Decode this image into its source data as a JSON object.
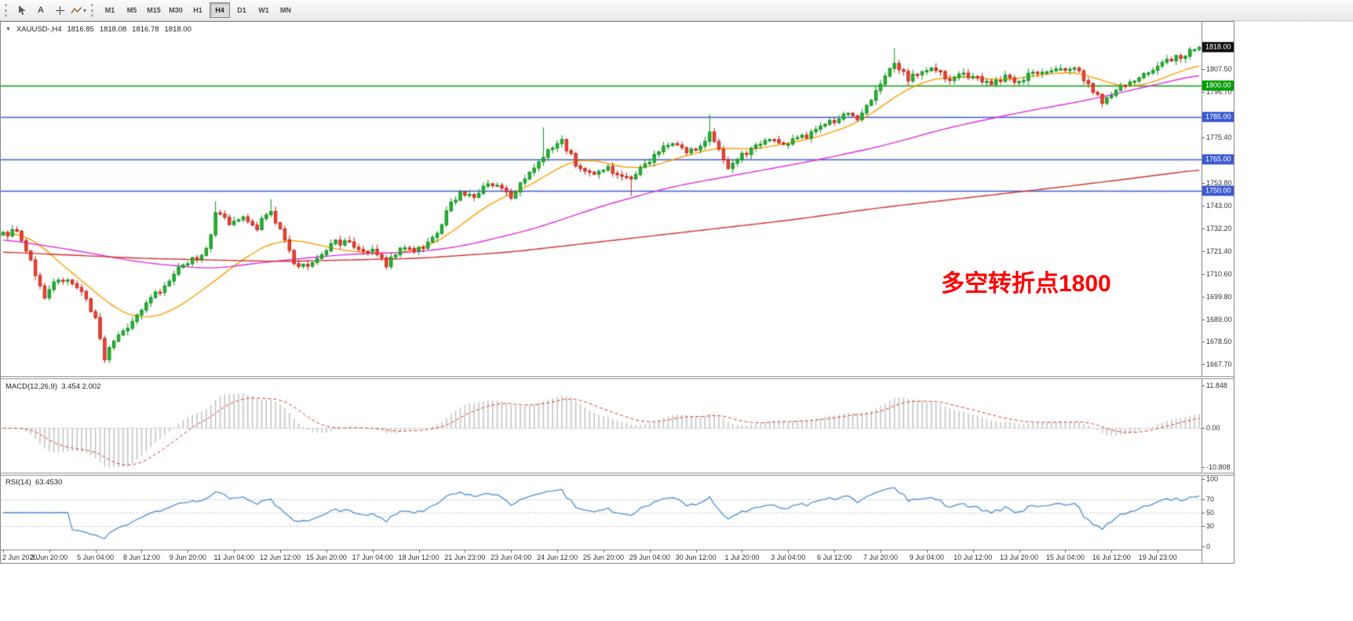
{
  "toolbar": {
    "tools": [
      {
        "name": "cursor-tool-button",
        "glyph": "pointer"
      },
      {
        "name": "text-tool-button",
        "label": "A"
      },
      {
        "name": "crosshair-tool-button",
        "glyph": "crosshair"
      },
      {
        "name": "indicators-tool-button",
        "glyph": "zigzag",
        "has_dropdown": true
      }
    ],
    "timeframes": [
      "M1",
      "M5",
      "M15",
      "M30",
      "H1",
      "H4",
      "D1",
      "W1",
      "MN"
    ],
    "active_timeframe": "H4"
  },
  "chart": {
    "title": "XAUUSD-,H4",
    "ohlc": {
      "open": "1816.85",
      "high": "1818.08",
      "low": "1816.78",
      "close": "1818.00"
    },
    "annotation": {
      "text": "多空转折点1800",
      "color": "#ff0000"
    }
  },
  "indicators": {
    "macd": {
      "label": "MACD(12,26,9)",
      "values": "3.454 2.002"
    },
    "rsi": {
      "label": "RSI(14)",
      "value": "63.4530"
    }
  },
  "chart_data": {
    "type": "candlestick",
    "symbol": "XAUUSD",
    "timeframe": "H4",
    "bar_count": 260,
    "final_close": 1818.0,
    "price_axis": {
      "max": 1822.5,
      "min": 1663.0,
      "ticks": [
        1807.5,
        1796.7,
        1775.4,
        1753.8,
        1743.0,
        1732.2,
        1721.4,
        1710.6,
        1699.8,
        1689.0,
        1678.5,
        1667.7
      ]
    },
    "levels": [
      {
        "price": 1818.0,
        "badge": "#111111",
        "line": false,
        "color": null,
        "role": "current-price"
      },
      {
        "price": 1800.0,
        "badge": "#089d08",
        "line": true,
        "color": "#089d08",
        "role": "horizontal-line"
      },
      {
        "price": 1785.0,
        "badge": "#3c5bd0",
        "line": true,
        "color": "#3c5bd0",
        "role": "horizontal-line"
      },
      {
        "price": 1765.0,
        "badge": "#3c5bd0",
        "line": true,
        "color": "#3c5bd0",
        "role": "horizontal-line"
      },
      {
        "price": 1750.0,
        "badge": "#3c5bd0",
        "line": true,
        "color": "#3c5bd0",
        "role": "horizontal-line"
      }
    ],
    "price_path": [
      [
        0,
        1729
      ],
      [
        3,
        1731
      ],
      [
        6,
        1716
      ],
      [
        9,
        1700
      ],
      [
        12,
        1709
      ],
      [
        15,
        1706
      ],
      [
        18,
        1699
      ],
      [
        20,
        1689
      ],
      [
        22,
        1671
      ],
      [
        24,
        1679
      ],
      [
        27,
        1686
      ],
      [
        30,
        1694
      ],
      [
        34,
        1703
      ],
      [
        38,
        1714
      ],
      [
        41,
        1717
      ],
      [
        44,
        1722
      ],
      [
        46,
        1739
      ],
      [
        49,
        1735
      ],
      [
        52,
        1738
      ],
      [
        55,
        1733
      ],
      [
        58,
        1741
      ],
      [
        60,
        1731
      ],
      [
        63,
        1716
      ],
      [
        66,
        1713
      ],
      [
        69,
        1721
      ],
      [
        72,
        1726
      ],
      [
        76,
        1724
      ],
      [
        80,
        1721
      ],
      [
        83,
        1715
      ],
      [
        86,
        1722
      ],
      [
        89,
        1721
      ],
      [
        92,
        1725
      ],
      [
        94,
        1729
      ],
      [
        96,
        1741
      ],
      [
        99,
        1749
      ],
      [
        102,
        1747
      ],
      [
        105,
        1754
      ],
      [
        108,
        1751
      ],
      [
        110,
        1746
      ],
      [
        112,
        1754
      ],
      [
        115,
        1761
      ],
      [
        118,
        1769
      ],
      [
        121,
        1774
      ],
      [
        124,
        1763
      ],
      [
        127,
        1758
      ],
      [
        130,
        1761
      ],
      [
        133,
        1759
      ],
      [
        136,
        1756
      ],
      [
        139,
        1762
      ],
      [
        142,
        1769
      ],
      [
        145,
        1772
      ],
      [
        148,
        1768
      ],
      [
        151,
        1771
      ],
      [
        153,
        1777
      ],
      [
        155,
        1769
      ],
      [
        157,
        1761
      ],
      [
        160,
        1767
      ],
      [
        163,
        1771
      ],
      [
        166,
        1774
      ],
      [
        170,
        1773
      ],
      [
        174,
        1776
      ],
      [
        178,
        1781
      ],
      [
        182,
        1786
      ],
      [
        185,
        1784
      ],
      [
        188,
        1794
      ],
      [
        191,
        1804
      ],
      [
        193,
        1810
      ],
      [
        196,
        1803
      ],
      [
        199,
        1806
      ],
      [
        202,
        1808
      ],
      [
        205,
        1802
      ],
      [
        208,
        1805
      ],
      [
        211,
        1804
      ],
      [
        214,
        1800
      ],
      [
        217,
        1804
      ],
      [
        220,
        1802
      ],
      [
        223,
        1806
      ],
      [
        226,
        1805
      ],
      [
        229,
        1807
      ],
      [
        232,
        1809
      ],
      [
        235,
        1800
      ],
      [
        238,
        1792
      ],
      [
        241,
        1797
      ],
      [
        244,
        1802
      ],
      [
        247,
        1805
      ],
      [
        250,
        1809
      ],
      [
        253,
        1812
      ],
      [
        256,
        1815
      ],
      [
        259,
        1817.5
      ]
    ],
    "spikes": [
      [
        22,
        null,
        1668.5
      ],
      [
        46,
        1745,
        null
      ],
      [
        58,
        1746,
        null
      ],
      [
        117,
        1780,
        null
      ],
      [
        136,
        null,
        1747.5
      ],
      [
        153,
        1786,
        null
      ],
      [
        193,
        1817.5,
        null
      ],
      [
        259,
        1818.4,
        null
      ]
    ],
    "ma_lines": [
      {
        "name": "ma-fast",
        "color": "#ff9c00",
        "anchors": [
          [
            0,
            1730
          ],
          [
            6,
            1729
          ],
          [
            12,
            1716
          ],
          [
            18,
            1706
          ],
          [
            24,
            1694
          ],
          [
            30,
            1689
          ],
          [
            36,
            1692
          ],
          [
            42,
            1701
          ],
          [
            48,
            1711
          ],
          [
            54,
            1721
          ],
          [
            60,
            1727
          ],
          [
            66,
            1726
          ],
          [
            72,
            1722
          ],
          [
            78,
            1721
          ],
          [
            84,
            1720
          ],
          [
            90,
            1722
          ],
          [
            96,
            1728
          ],
          [
            102,
            1739
          ],
          [
            108,
            1747
          ],
          [
            114,
            1752
          ],
          [
            120,
            1761
          ],
          [
            126,
            1766
          ],
          [
            132,
            1762
          ],
          [
            138,
            1760
          ],
          [
            144,
            1764
          ],
          [
            150,
            1768
          ],
          [
            156,
            1771
          ],
          [
            162,
            1769
          ],
          [
            168,
            1772
          ],
          [
            174,
            1774
          ],
          [
            180,
            1778
          ],
          [
            186,
            1783
          ],
          [
            192,
            1793
          ],
          [
            198,
            1801
          ],
          [
            204,
            1804
          ],
          [
            210,
            1804
          ],
          [
            216,
            1802
          ],
          [
            222,
            1804
          ],
          [
            228,
            1806
          ],
          [
            234,
            1806
          ],
          [
            240,
            1800
          ],
          [
            246,
            1799
          ],
          [
            252,
            1804
          ],
          [
            259,
            1810
          ]
        ]
      },
      {
        "name": "ma-medium",
        "color": "#e02ee0",
        "anchors": [
          [
            0,
            1727
          ],
          [
            15,
            1722
          ],
          [
            30,
            1716
          ],
          [
            45,
            1713
          ],
          [
            60,
            1717
          ],
          [
            75,
            1720
          ],
          [
            90,
            1721
          ],
          [
            100,
            1724
          ],
          [
            115,
            1732
          ],
          [
            130,
            1743
          ],
          [
            145,
            1752
          ],
          [
            160,
            1758
          ],
          [
            175,
            1764
          ],
          [
            190,
            1771
          ],
          [
            205,
            1780
          ],
          [
            220,
            1787
          ],
          [
            235,
            1793
          ],
          [
            247,
            1799
          ],
          [
            259,
            1805
          ]
        ]
      },
      {
        "name": "ma-slow",
        "color": "#d43030",
        "anchors": [
          [
            0,
            1721
          ],
          [
            30,
            1718
          ],
          [
            60,
            1716.5
          ],
          [
            90,
            1718
          ],
          [
            110,
            1721
          ],
          [
            130,
            1726
          ],
          [
            150,
            1731
          ],
          [
            170,
            1736
          ],
          [
            190,
            1742
          ],
          [
            210,
            1747
          ],
          [
            230,
            1752
          ],
          [
            245,
            1756
          ],
          [
            259,
            1760
          ]
        ]
      }
    ],
    "macd_axis": {
      "max": 11.848,
      "min": -10.808,
      "ticks": [
        [
          11.848,
          "11.848"
        ],
        [
          0,
          "0.00"
        ],
        [
          -10.808,
          "-10.808"
        ]
      ]
    },
    "rsi_axis": [
      [
        100,
        "100"
      ],
      [
        70,
        "70"
      ],
      [
        50,
        "50"
      ],
      [
        30,
        "30"
      ],
      [
        0,
        "0"
      ]
    ],
    "rsi_levels": [
      70,
      50,
      30
    ],
    "time_labels": [
      [
        0,
        "2 Jun 2020"
      ],
      [
        10,
        "3 Jun 20:00"
      ],
      [
        20,
        "5 Jun 04:00"
      ],
      [
        30,
        "8 Jun 12:00"
      ],
      [
        40,
        "9 Jun 20:00"
      ],
      [
        50,
        "11 Jun 04:00"
      ],
      [
        60,
        "12 Jun 12:00"
      ],
      [
        70,
        "15 Jun 20:00"
      ],
      [
        80,
        "17 Jun 04:00"
      ],
      [
        90,
        "18 Jun 12:00"
      ],
      [
        100,
        "21 Jun 23:00"
      ],
      [
        110,
        "23 Jun 04:00"
      ],
      [
        120,
        "24 Jun 12:00"
      ],
      [
        130,
        "25 Jun 20:00"
      ],
      [
        140,
        "29 Jun 04:00"
      ],
      [
        150,
        "30 Jun 12:00"
      ],
      [
        160,
        "1 Jul 20:00"
      ],
      [
        170,
        "3 Jul 04:00"
      ],
      [
        180,
        "6 Jul 12:00"
      ],
      [
        190,
        "7 Jul 20:00"
      ],
      [
        200,
        "9 Jul 04:00"
      ],
      [
        210,
        "10 Jul 12:00"
      ],
      [
        220,
        "13 Jul 20:00"
      ],
      [
        230,
        "15 Jul 04:00"
      ],
      [
        240,
        "16 Jul 12:00"
      ],
      [
        250,
        "19 Jul 23:00"
      ]
    ],
    "colors": {
      "up": "#29b535",
      "up_border": "#0c8f1c",
      "down": "#ec4939",
      "down_border": "#c41f12",
      "macd_hist": "#bdbdbd",
      "macd_signal": "#e03535",
      "rsi_line": "#4a8fd4"
    }
  }
}
